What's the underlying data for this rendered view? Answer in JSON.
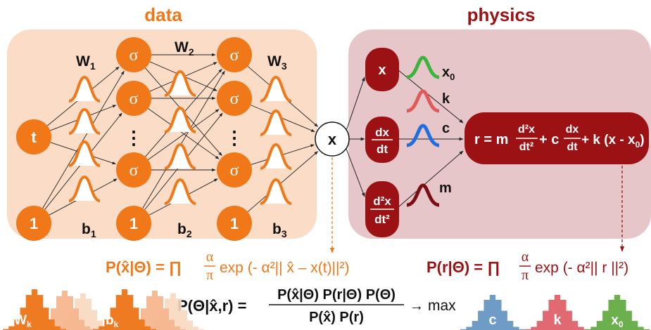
{
  "colors": {
    "data_accent": "#f07818",
    "data_panel": "#fbdcc6",
    "physics_accent": "#9c1214",
    "physics_panel": "#e7c6c9",
    "gauss_green": "#3cb43c",
    "gauss_red": "#e05a5a",
    "gauss_blue": "#1f6fe0",
    "hist_orange": "#ee7a22",
    "hist_blue": "#6e9cc6",
    "hist_pink": "#e16a72",
    "hist_green": "#6cb04e"
  },
  "titles": {
    "data": "data",
    "physics": "physics"
  },
  "network": {
    "input_t": "t",
    "bias_node": "1",
    "activation": "σ",
    "ellipsis": "⋮",
    "output_x": "x",
    "weights": [
      "W",
      "W",
      "W"
    ],
    "weight_subs": [
      "1",
      "2",
      "3"
    ],
    "biases": [
      "b",
      "b",
      "b"
    ],
    "bias_subs": [
      "1",
      "2",
      "3"
    ]
  },
  "physics": {
    "x_node": "x",
    "dx": "dx",
    "dt": "dt",
    "d2x": "d²x",
    "dt2": "dt²",
    "param_x0": "x",
    "param_x0_sub": "0",
    "param_k": "k",
    "param_c": "c",
    "param_m": "m",
    "residual": {
      "lhs": "r = m",
      "frac1_num": "d²x",
      "frac1_den": "dt²",
      "plus_c": "+ c",
      "frac2_num": "dx",
      "frac2_den": "dt",
      "tail": "+ k (x - x",
      "tail_sub": "0",
      "tail_close": ")"
    }
  },
  "equations": {
    "data_likelihood": {
      "lhs": "P(x̂|Θ) = ∏",
      "frac_num": "α",
      "frac_den": "π",
      "rhs": "exp (- α²|| x̂ – x(t)||²)"
    },
    "physics_likelihood": {
      "lhs": "P(r|Θ) = ∏",
      "frac_num": "α",
      "frac_den": "π",
      "rhs": "exp (- α²|| r ||²)"
    },
    "posterior": {
      "lhs": "P(Θ|x̂,r) =",
      "num": "P(x̂|Θ) P(r|Θ) P(Θ)",
      "den": "P(x̂) P(r)",
      "arrow": "→",
      "max": "max"
    }
  },
  "histograms": {
    "wk": "W",
    "wk_sub": "k",
    "bk": "b",
    "bk_sub": "k",
    "c": "c",
    "k": "k",
    "x0": "x",
    "x0_sub": "0"
  }
}
